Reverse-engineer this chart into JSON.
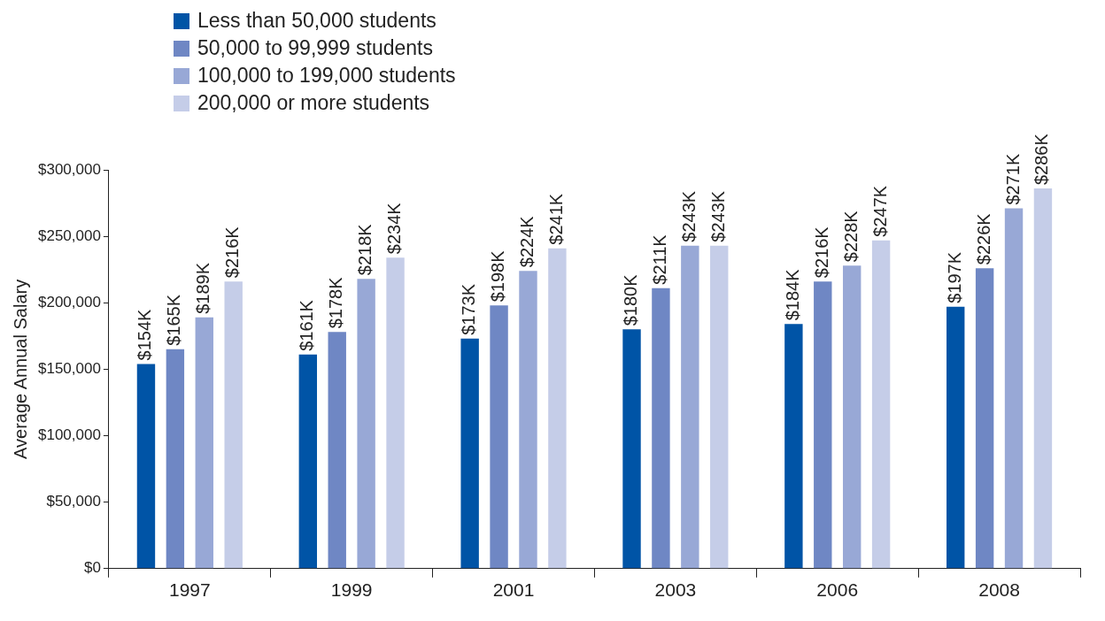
{
  "chart_data": {
    "type": "bar",
    "ylabel": "Average Annual Salary",
    "categories": [
      "1997",
      "1999",
      "2001",
      "2003",
      "2006",
      "2008"
    ],
    "series": [
      {
        "name": "Less than 50,000 students",
        "color": "#0054a6",
        "values": [
          154000,
          161000,
          173000,
          180000,
          184000,
          197000
        ],
        "value_labels": [
          "$154K",
          "$161K",
          "$173K",
          "$180K",
          "$184K",
          "$197K"
        ]
      },
      {
        "name": "50,000 to 99,999 students",
        "color": "#6f87c4",
        "values": [
          165000,
          178000,
          198000,
          211000,
          216000,
          226000
        ],
        "value_labels": [
          "$165K",
          "$178K",
          "$198K",
          "$211K",
          "$216K",
          "$226K"
        ]
      },
      {
        "name": "100,000 to 199,000 students",
        "color": "#98a8d6",
        "values": [
          189000,
          218000,
          224000,
          243000,
          228000,
          271000
        ],
        "value_labels": [
          "$189K",
          "$218K",
          "$224K",
          "$243K",
          "$228K",
          "$271K"
        ]
      },
      {
        "name": "200,000 or more students",
        "color": "#c5cde8",
        "values": [
          216000,
          234000,
          241000,
          243000,
          247000,
          286000
        ],
        "value_labels": [
          "$216K",
          "$234K",
          "$241K",
          "$243K",
          "$247K",
          "$286K"
        ]
      }
    ],
    "ylim": [
      0,
      300000
    ],
    "yticks": [
      {
        "value": 0,
        "label": "$0"
      },
      {
        "value": 50000,
        "label": "$50,000"
      },
      {
        "value": 100000,
        "label": "$100,000"
      },
      {
        "value": 150000,
        "label": "$150,000"
      },
      {
        "value": 200000,
        "label": "$200,000"
      },
      {
        "value": 250000,
        "label": "$250,000"
      },
      {
        "value": 300000,
        "label": "$300,000"
      }
    ],
    "grid": false,
    "legend": "top left"
  }
}
